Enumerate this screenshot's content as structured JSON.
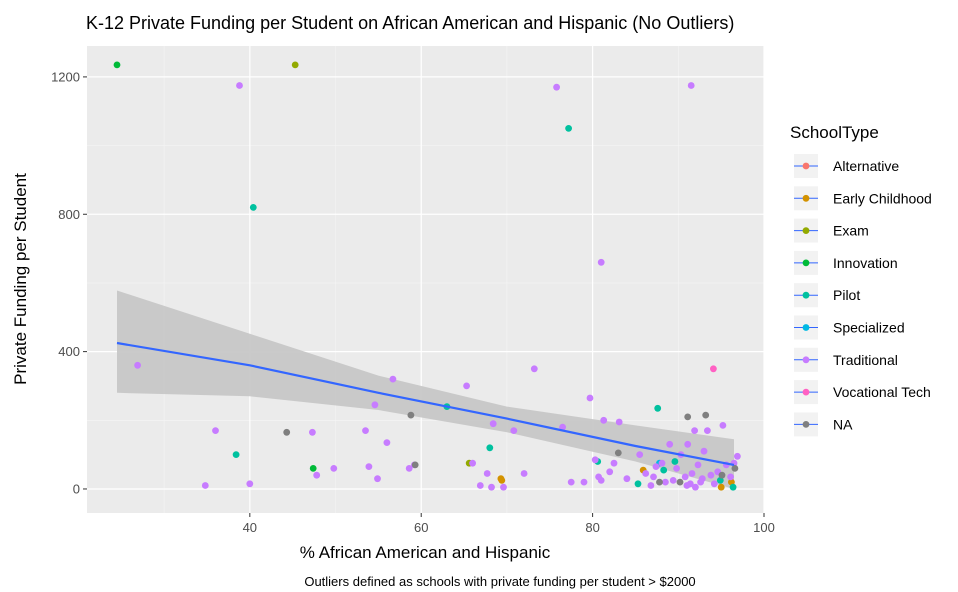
{
  "chart_data": {
    "type": "scatter",
    "title": "K-12 Private Funding per Student on African American and Hispanic (No Outliers)",
    "xlabel": "% African American and Hispanic",
    "ylabel": "Private Funding per Student",
    "caption": "Outliers defined as schools with private funding per student > $2000",
    "xlim": [
      21,
      100
    ],
    "ylim": [
      -70,
      1290
    ],
    "x_ticks": [
      40,
      60,
      80,
      100
    ],
    "y_ticks": [
      0,
      400,
      800,
      1200
    ],
    "background": "#ebebeb",
    "grid": true,
    "legend": {
      "title": "SchoolType",
      "position": "right",
      "entries": [
        {
          "name": "Alternative",
          "color": "#f8766d"
        },
        {
          "name": "Early Childhood",
          "color": "#d39200"
        },
        {
          "name": "Exam",
          "color": "#93aa00"
        },
        {
          "name": "Innovation",
          "color": "#00ba38"
        },
        {
          "name": "Pilot",
          "color": "#00c19f"
        },
        {
          "name": "Specialized",
          "color": "#00b9e3"
        },
        {
          "name": "Traditional",
          "color": "#c77cff"
        },
        {
          "name": "Vocational Tech",
          "color": "#ff61c3"
        },
        {
          "name": "NA",
          "color": "#7f7f7f"
        }
      ]
    },
    "trend": {
      "method": "lm",
      "color": "#3366ff",
      "ribbon_color": "#c7c7c7",
      "points": [
        {
          "x": 24.5,
          "y": 425,
          "lo": 280,
          "hi": 578
        },
        {
          "x": 40,
          "y": 360,
          "lo": 270,
          "hi": 452
        },
        {
          "x": 55,
          "y": 280,
          "lo": 230,
          "hi": 330
        },
        {
          "x": 70,
          "y": 205,
          "lo": 165,
          "hi": 240
        },
        {
          "x": 85,
          "y": 125,
          "lo": 80,
          "hi": 185
        },
        {
          "x": 96.5,
          "y": 70,
          "lo": 0,
          "hi": 145
        }
      ]
    },
    "series": [
      {
        "name": "Early Childhood",
        "color": "#d39200",
        "points": [
          [
            69.3,
            30
          ],
          [
            69.4,
            25
          ],
          [
            85.9,
            55
          ],
          [
            95,
            5
          ],
          [
            96.2,
            20
          ]
        ]
      },
      {
        "name": "Exam",
        "color": "#93aa00",
        "points": [
          [
            45.3,
            1235
          ],
          [
            65.6,
            75
          ]
        ]
      },
      {
        "name": "Innovation",
        "color": "#00ba38",
        "points": [
          [
            24.5,
            1235
          ],
          [
            47.4,
            60
          ]
        ]
      },
      {
        "name": "Pilot",
        "color": "#00c19f",
        "points": [
          [
            40.4,
            820
          ],
          [
            38.4,
            100
          ],
          [
            77.2,
            1050
          ],
          [
            68,
            120
          ],
          [
            63,
            240
          ],
          [
            80.6,
            80
          ],
          [
            85.3,
            15
          ],
          [
            87.6,
            235
          ],
          [
            88.3,
            55
          ],
          [
            89.6,
            80
          ],
          [
            94.9,
            25
          ],
          [
            96.4,
            5
          ]
        ]
      },
      {
        "name": "Specialized",
        "color": "#00b9e3",
        "points": [
          [
            87.8,
            75
          ]
        ]
      },
      {
        "name": "Traditional",
        "color": "#c77cff",
        "points": [
          [
            26.9,
            360
          ],
          [
            38.8,
            1175
          ],
          [
            75.8,
            1170
          ],
          [
            91.5,
            1175
          ],
          [
            81,
            660
          ],
          [
            34.8,
            10
          ],
          [
            36,
            170
          ],
          [
            40,
            15
          ],
          [
            47.3,
            165
          ],
          [
            47.8,
            40
          ],
          [
            49.8,
            60
          ],
          [
            53.5,
            170
          ],
          [
            53.9,
            65
          ],
          [
            54.6,
            245
          ],
          [
            54.9,
            30
          ],
          [
            56,
            135
          ],
          [
            56.7,
            320
          ],
          [
            58.6,
            60
          ],
          [
            59.2,
            70
          ],
          [
            65.3,
            300
          ],
          [
            66,
            75
          ],
          [
            66.9,
            10
          ],
          [
            67.7,
            45
          ],
          [
            68.2,
            5
          ],
          [
            68.4,
            190
          ],
          [
            69.6,
            5
          ],
          [
            70.8,
            170
          ],
          [
            72,
            45
          ],
          [
            73.2,
            350
          ],
          [
            76.5,
            180
          ],
          [
            77.5,
            20
          ],
          [
            79,
            20
          ],
          [
            79.7,
            265
          ],
          [
            80.3,
            85
          ],
          [
            80.7,
            35
          ],
          [
            81,
            25
          ],
          [
            81.3,
            200
          ],
          [
            82,
            50
          ],
          [
            82.5,
            75
          ],
          [
            83.1,
            195
          ],
          [
            84,
            30
          ],
          [
            85.5,
            100
          ],
          [
            86.2,
            45
          ],
          [
            86.8,
            10
          ],
          [
            87.1,
            35
          ],
          [
            87.4,
            65
          ],
          [
            88.1,
            75
          ],
          [
            88.5,
            20
          ],
          [
            89,
            130
          ],
          [
            89.4,
            25
          ],
          [
            89.8,
            60
          ],
          [
            90.3,
            100
          ],
          [
            90.8,
            35
          ],
          [
            91,
            10
          ],
          [
            91.1,
            130
          ],
          [
            91.4,
            15
          ],
          [
            91.6,
            45
          ],
          [
            91.9,
            170
          ],
          [
            92,
            5
          ],
          [
            92.3,
            70
          ],
          [
            92.6,
            20
          ],
          [
            92.8,
            30
          ],
          [
            93,
            110
          ],
          [
            93.4,
            170
          ],
          [
            93.8,
            40
          ],
          [
            94.2,
            15
          ],
          [
            94.6,
            50
          ],
          [
            95.2,
            185
          ],
          [
            95.6,
            70
          ],
          [
            96.1,
            35
          ],
          [
            96.5,
            75
          ],
          [
            96.9,
            95
          ]
        ]
      },
      {
        "name": "Vocational Tech",
        "color": "#ff61c3",
        "points": [
          [
            94.1,
            350
          ]
        ]
      },
      {
        "name": "NA",
        "color": "#7f7f7f",
        "points": [
          [
            44.3,
            165
          ],
          [
            58.8,
            215
          ],
          [
            59.3,
            70
          ],
          [
            83,
            105
          ],
          [
            87.8,
            20
          ],
          [
            90.2,
            20
          ],
          [
            91.1,
            210
          ],
          [
            93.2,
            215
          ],
          [
            95.1,
            40
          ],
          [
            96.6,
            60
          ]
        ]
      }
    ]
  }
}
